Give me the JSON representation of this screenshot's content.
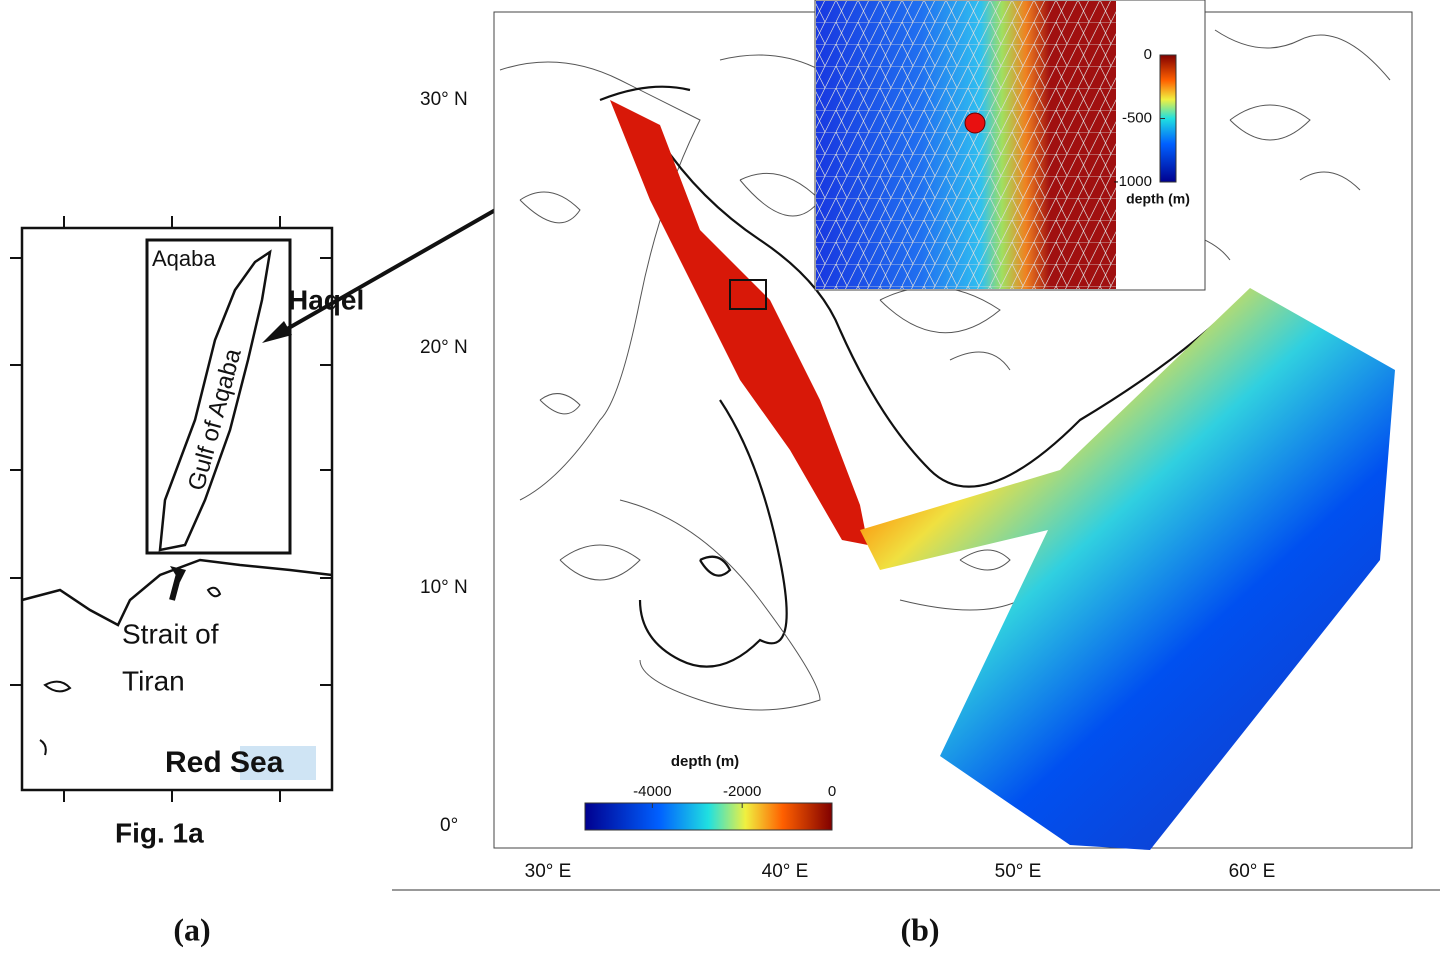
{
  "panel_a": {
    "labels": [
      "Aqaba",
      "Gulf of Aqaba",
      "Haqel",
      "Strait of",
      "Tiran",
      "Red Sea"
    ],
    "caption": "Fig. 1a",
    "tag": "(a)"
  },
  "panel_b": {
    "lat_labels": [
      "30° N",
      "20° N",
      "10° N",
      "0°"
    ],
    "lon_labels": [
      "30° E",
      "40° E",
      "50° E",
      "60° E"
    ],
    "colorbar": {
      "title": "depth (m)",
      "lim": [
        -5500,
        0
      ],
      "ticks": [
        -4000,
        -2000,
        0
      ]
    },
    "inset_colorbar": {
      "title": "depth (m)",
      "lim": [
        -1000,
        0
      ],
      "ticks": [
        0,
        -500,
        -1000
      ]
    },
    "tag": "(b)"
  }
}
